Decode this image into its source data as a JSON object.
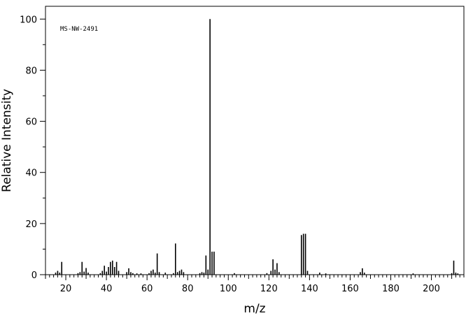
{
  "chart_data": {
    "type": "bar",
    "title": "",
    "annotation": "MS-NW-2491",
    "xlabel": "m/z",
    "ylabel": "Relative Intensity",
    "xlim": [
      10,
      216
    ],
    "ylim": [
      0,
      105
    ],
    "x_ticks": [
      20,
      40,
      60,
      80,
      100,
      120,
      140,
      160,
      180,
      200
    ],
    "x_tick_labels": [
      "20",
      "40",
      "60",
      "80",
      "100",
      "120",
      "140",
      "160",
      "180",
      "200"
    ],
    "y_ticks": [
      0,
      20,
      40,
      60,
      80,
      100
    ],
    "y_tick_labels": [
      "0",
      "20",
      "40",
      "60",
      "80",
      "100"
    ],
    "grid": false,
    "x": [
      15,
      16,
      17,
      18,
      26,
      27,
      28,
      29,
      30,
      31,
      37,
      38,
      39,
      40,
      41,
      42,
      43,
      44,
      45,
      46,
      50,
      51,
      52,
      53,
      55,
      57,
      61,
      62,
      63,
      64,
      65,
      66,
      69,
      73,
      74,
      75,
      76,
      77,
      78,
      86,
      87,
      88,
      89,
      90,
      91,
      92,
      93,
      103,
      119,
      121,
      122,
      123,
      124,
      125,
      136,
      137,
      138,
      139,
      145,
      148,
      165,
      166,
      167,
      191,
      210,
      211,
      212,
      213
    ],
    "values": [
      0.8,
      1.5,
      0.8,
      5.0,
      0.6,
      1.0,
      5.0,
      1.2,
      2.6,
      0.8,
      0.6,
      1.5,
      3.5,
      1.2,
      3.0,
      5.0,
      5.5,
      3.0,
      5.0,
      1.5,
      1.0,
      2.5,
      1.0,
      0.6,
      0.5,
      0.5,
      0.6,
      1.5,
      2.0,
      0.8,
      8.3,
      1.0,
      0.8,
      0.6,
      12.2,
      1.0,
      1.5,
      2.0,
      1.0,
      0.6,
      1.0,
      0.8,
      7.5,
      2.0,
      100.0,
      9.0,
      9.0,
      0.6,
      0.6,
      1.5,
      6.0,
      2.0,
      4.5,
      1.0,
      15.5,
      16.0,
      16.0,
      1.5,
      0.8,
      0.5,
      1.0,
      2.5,
      0.8,
      0.5,
      0.6,
      5.5,
      0.8,
      0.5
    ]
  }
}
